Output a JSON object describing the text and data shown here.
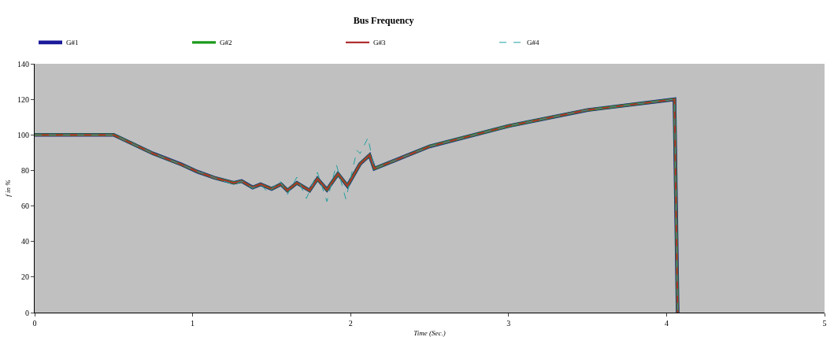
{
  "chart_data": {
    "type": "line",
    "title": "Bus Frequency",
    "xlabel": "Time (Sec.)",
    "ylabel": "f in %",
    "xlim": [
      0,
      5
    ],
    "xticks": [
      0,
      1,
      2,
      3,
      4,
      5
    ],
    "ylim": [
      0,
      140
    ],
    "yticks": [
      0,
      20,
      40,
      60,
      80,
      100,
      120,
      140
    ],
    "grid": false,
    "legend": "top left",
    "marker": "none",
    "series": [
      {
        "name": "G#1",
        "color": "#1a1a9a",
        "line_style": "solid",
        "x": [
          0,
          0.5,
          0.75,
          0.93,
          1.03,
          1.14,
          1.26,
          1.31,
          1.38,
          1.43,
          1.5,
          1.56,
          1.6,
          1.66,
          1.74,
          1.79,
          1.85,
          1.92,
          1.98,
          2.06,
          2.12,
          2.15,
          2.5,
          3,
          3.5,
          4.05,
          4.06,
          4.07
        ],
        "values": [
          100,
          100,
          89.5,
          83.3,
          79.3,
          75.8,
          73,
          74,
          70.4,
          72.2,
          69.6,
          72.2,
          68.7,
          73,
          68.7,
          75.3,
          69.1,
          78,
          71.3,
          83.7,
          88.6,
          81,
          93.5,
          105,
          114,
          120,
          60,
          0
        ]
      },
      {
        "name": "G#2",
        "color": "#1a9a1a",
        "line_style": "solid",
        "x": [
          0,
          0.5,
          0.75,
          0.93,
          1.03,
          1.14,
          1.26,
          1.31,
          1.38,
          1.43,
          1.5,
          1.56,
          1.6,
          1.66,
          1.74,
          1.79,
          1.85,
          1.92,
          1.98,
          2.06,
          2.12,
          2.15,
          2.5,
          3,
          3.5,
          4.05,
          4.06,
          4.07
        ],
        "values": [
          100,
          100,
          89.5,
          83.3,
          79.3,
          75.8,
          73,
          74,
          70.4,
          72.2,
          69.6,
          72.2,
          68.7,
          73,
          68.7,
          75.3,
          69.1,
          78,
          71.3,
          83.7,
          88.6,
          81,
          93.5,
          105,
          114,
          120,
          60,
          0
        ]
      },
      {
        "name": "G#3",
        "color": "#b03030",
        "line_style": "solid",
        "x": [
          0,
          0.5,
          0.75,
          0.93,
          1.03,
          1.14,
          1.26,
          1.31,
          1.38,
          1.43,
          1.5,
          1.56,
          1.6,
          1.66,
          1.74,
          1.79,
          1.85,
          1.92,
          1.98,
          2.06,
          2.12,
          2.15,
          2.5,
          3,
          3.5,
          4.05,
          4.06,
          4.07
        ],
        "values": [
          100,
          100,
          89.5,
          83.3,
          79.3,
          75.8,
          73,
          74,
          70.4,
          72.2,
          69.6,
          72.2,
          68.7,
          73,
          68.7,
          75.3,
          69.1,
          78,
          71.3,
          83.7,
          88.6,
          81,
          93.5,
          105,
          114,
          120,
          60,
          0
        ]
      },
      {
        "name": "G#4",
        "color": "#20a0a0",
        "line_style": "dashed",
        "x": [
          0,
          0.5,
          0.75,
          0.93,
          1.03,
          1.08,
          1.14,
          1.26,
          1.31,
          1.38,
          1.43,
          1.48,
          1.55,
          1.6,
          1.66,
          1.72,
          1.79,
          1.85,
          1.91,
          1.97,
          2.04,
          2.06,
          2.11,
          2.15,
          2.5,
          3,
          3.5,
          4.05,
          4.06,
          4.07
        ],
        "values": [
          100,
          100,
          89.5,
          83.3,
          79.3,
          78,
          75.8,
          72,
          74,
          70,
          72.2,
          67.3,
          74.4,
          66.5,
          76.2,
          64.2,
          78.9,
          62.5,
          83.3,
          63.8,
          91.3,
          89.5,
          98.4,
          81,
          93.5,
          105,
          114,
          120,
          60,
          0
        ]
      }
    ]
  }
}
